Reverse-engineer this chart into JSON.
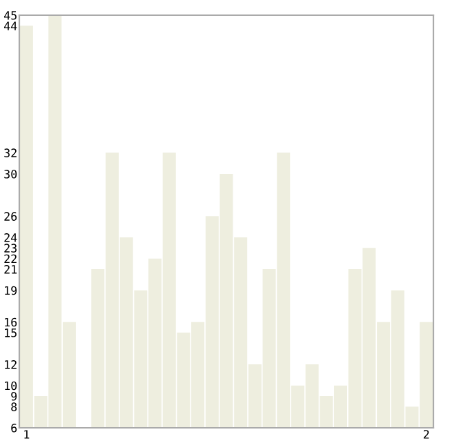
{
  "chart_data": {
    "type": "bar",
    "categories": [
      "1",
      null,
      null,
      null,
      null,
      null,
      null,
      null,
      null,
      null,
      null,
      null,
      null,
      null,
      null,
      null,
      null,
      null,
      null,
      null,
      null,
      null,
      null,
      null,
      null,
      null,
      null,
      null,
      "2"
    ],
    "values": [
      44,
      9,
      45,
      16,
      6,
      21,
      32,
      24,
      19,
      22,
      32,
      15,
      16,
      26,
      30,
      24,
      12,
      21,
      32,
      10,
      12,
      9,
      10,
      21,
      23,
      16,
      19,
      8,
      16
    ],
    "color": "#eeeedf",
    "ylim": [
      6,
      45
    ],
    "yticks": [
      6,
      8,
      9,
      10,
      12,
      15,
      16,
      19,
      21,
      22,
      23,
      24,
      26,
      30,
      32,
      44,
      45
    ],
    "grid": false,
    "legend": false
  }
}
